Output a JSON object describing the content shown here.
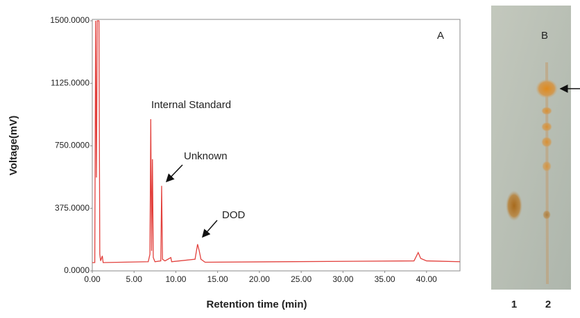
{
  "chart_data": {
    "type": "line",
    "panel_label": "A",
    "xlabel": "Retention time (min)",
    "ylabel": "Voltage(mV)",
    "xlim": [
      0,
      44
    ],
    "ylim": [
      0,
      1500
    ],
    "xticks": [
      {
        "value": 0,
        "label": "0.00"
      },
      {
        "value": 5,
        "label": "5.00"
      },
      {
        "value": 10,
        "label": "10.00"
      },
      {
        "value": 15,
        "label": "15.00"
      },
      {
        "value": 20,
        "label": "20.00"
      },
      {
        "value": 25,
        "label": "25.00"
      },
      {
        "value": 30,
        "label": "30.00"
      },
      {
        "value": 35,
        "label": "35.00"
      },
      {
        "value": 40,
        "label": "40.00"
      }
    ],
    "yticks": [
      {
        "value": 0,
        "label": "0.0000"
      },
      {
        "value": 375,
        "label": "375.0000"
      },
      {
        "value": 750,
        "label": "750.0000"
      },
      {
        "value": 1125,
        "label": "1125.0000"
      },
      {
        "value": 1500,
        "label": "1500.0000"
      }
    ],
    "x": [
      0.0,
      0.3,
      0.4,
      0.5,
      0.6,
      0.7,
      0.8,
      0.9,
      1.0,
      1.2,
      1.3,
      6.7,
      6.9,
      7.0,
      7.1,
      7.2,
      7.3,
      7.5,
      8.2,
      8.3,
      8.4,
      8.7,
      9.4,
      9.5,
      12.3,
      12.6,
      12.8,
      13.0,
      13.5,
      38.5,
      39.0,
      39.3,
      40.0,
      44.0
    ],
    "series": [
      {
        "color": "#e2403c",
        "values": [
          50,
          50,
          1500,
          560,
          1500,
          1500,
          1500,
          100,
          60,
          90,
          50,
          55,
          100,
          910,
          120,
          670,
          80,
          55,
          60,
          510,
          70,
          60,
          80,
          55,
          70,
          160,
          120,
          70,
          52,
          60,
          110,
          75,
          60,
          55
        ]
      }
    ],
    "annotations": [
      "Internal Standard",
      "Unknown",
      "DOD"
    ]
  },
  "tlc": {
    "panel_label": "B",
    "lanes": [
      "1",
      "2"
    ]
  }
}
